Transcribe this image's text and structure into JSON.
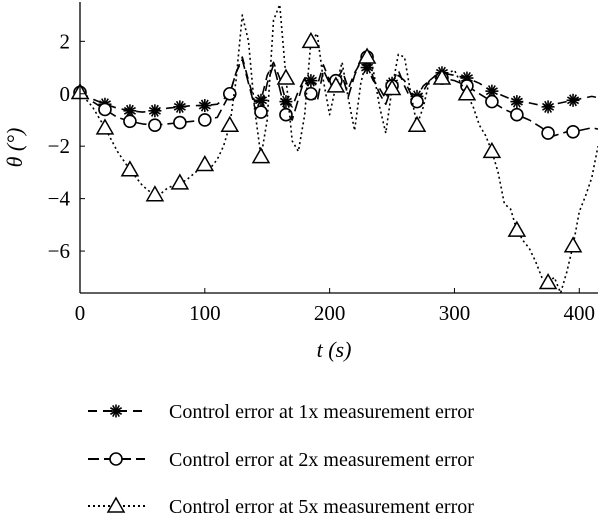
{
  "chart_data": {
    "type": "line",
    "title": "",
    "xlabel": "t (s)",
    "ylabel": "θ (°)",
    "xlim": [
      0,
      415
    ],
    "ylim": [
      -7.6,
      3.5
    ],
    "xticks": [
      0,
      100,
      200,
      300,
      400
    ],
    "yticks": [
      2,
      0,
      -2,
      -4,
      -6
    ],
    "grid": false,
    "legend_position": "bottom",
    "series": [
      {
        "name": "Control error at 1x measurement error",
        "marker": "asterisk",
        "line": "dashed",
        "markers_at": [
          0,
          20,
          40,
          60,
          80,
          100,
          120,
          145,
          165,
          185,
          205,
          230,
          250,
          270,
          290,
          310,
          330,
          350,
          375,
          395
        ],
        "x": [
          0,
          10,
          20,
          30,
          40,
          50,
          60,
          70,
          80,
          90,
          100,
          110,
          120,
          125,
          130,
          135,
          140,
          145,
          150,
          155,
          160,
          165,
          170,
          175,
          180,
          185,
          190,
          195,
          200,
          205,
          210,
          215,
          220,
          225,
          230,
          235,
          240,
          245,
          250,
          255,
          260,
          265,
          270,
          275,
          280,
          285,
          290,
          295,
          300,
          310,
          320,
          330,
          340,
          350,
          360,
          370,
          375,
          380,
          390,
          395,
          400,
          410,
          415
        ],
        "values": [
          0.05,
          -0.2,
          -0.4,
          -0.55,
          -0.65,
          -0.7,
          -0.65,
          -0.55,
          -0.5,
          -0.45,
          -0.45,
          -0.4,
          0.0,
          0.8,
          1.4,
          0.5,
          -0.3,
          -0.25,
          0.7,
          1.2,
          0.6,
          -0.3,
          -0.5,
          0.1,
          0.6,
          0.5,
          0.3,
          1.1,
          0.5,
          0.45,
          0.9,
          0.2,
          0.8,
          1.2,
          1.0,
          0.5,
          0.2,
          -0.2,
          0.4,
          0.9,
          0.3,
          -0.2,
          -0.1,
          0.3,
          0.5,
          0.7,
          0.8,
          0.75,
          0.7,
          0.6,
          0.4,
          0.1,
          -0.1,
          -0.3,
          -0.35,
          -0.45,
          -0.5,
          -0.4,
          -0.3,
          -0.25,
          -0.2,
          -0.1,
          -0.15
        ]
      },
      {
        "name": "Control error at 2x measurement error",
        "marker": "circle",
        "line": "dashed",
        "markers_at": [
          0,
          20,
          40,
          60,
          80,
          100,
          120,
          145,
          165,
          185,
          205,
          230,
          250,
          270,
          290,
          310,
          330,
          350,
          375,
          395
        ],
        "x": [
          0,
          10,
          20,
          30,
          40,
          50,
          60,
          70,
          80,
          90,
          100,
          110,
          120,
          125,
          130,
          135,
          140,
          145,
          150,
          155,
          160,
          165,
          170,
          175,
          180,
          185,
          190,
          195,
          200,
          205,
          210,
          215,
          220,
          225,
          230,
          235,
          240,
          245,
          250,
          255,
          260,
          265,
          270,
          275,
          280,
          285,
          290,
          295,
          300,
          310,
          320,
          330,
          340,
          350,
          360,
          370,
          375,
          380,
          390,
          395,
          400,
          410,
          415
        ],
        "values": [
          0.05,
          -0.3,
          -0.6,
          -0.9,
          -1.05,
          -1.15,
          -1.2,
          -1.15,
          -1.1,
          -1.05,
          -1.0,
          -0.9,
          0.0,
          0.8,
          1.3,
          0.4,
          -0.5,
          -0.7,
          0.4,
          1.1,
          0.2,
          -0.8,
          -1.0,
          -0.2,
          0.6,
          0.0,
          -0.3,
          0.9,
          0.4,
          0.5,
          0.7,
          -0.1,
          0.7,
          1.3,
          1.4,
          0.6,
          0.0,
          -0.4,
          0.3,
          0.7,
          0.5,
          0.0,
          -0.3,
          0.1,
          0.5,
          0.6,
          0.6,
          0.55,
          0.5,
          0.3,
          0.0,
          -0.3,
          -0.6,
          -0.8,
          -1.0,
          -1.3,
          -1.5,
          -1.6,
          -1.45,
          -1.45,
          -1.4,
          -1.3,
          -1.35
        ]
      },
      {
        "name": "Control error at 5x measurement error",
        "marker": "triangle",
        "line": "dotted",
        "markers_at": [
          0,
          20,
          40,
          60,
          80,
          100,
          120,
          145,
          165,
          185,
          205,
          230,
          250,
          270,
          290,
          310,
          330,
          350,
          375,
          395
        ],
        "x": [
          0,
          10,
          20,
          30,
          40,
          45,
          50,
          55,
          60,
          65,
          70,
          75,
          80,
          85,
          90,
          95,
          100,
          105,
          110,
          115,
          120,
          125,
          130,
          135,
          140,
          145,
          150,
          155,
          160,
          165,
          170,
          175,
          180,
          185,
          190,
          195,
          200,
          205,
          210,
          215,
          220,
          225,
          230,
          235,
          240,
          245,
          250,
          255,
          260,
          265,
          270,
          275,
          280,
          285,
          290,
          295,
          300,
          305,
          310,
          315,
          320,
          325,
          330,
          335,
          340,
          345,
          350,
          355,
          360,
          365,
          370,
          375,
          380,
          385,
          390,
          395,
          400,
          405,
          410,
          415
        ],
        "values": [
          0.05,
          -0.5,
          -1.3,
          -2.2,
          -2.9,
          -3.2,
          -3.5,
          -3.7,
          -3.85,
          -3.8,
          -3.6,
          -3.5,
          -3.4,
          -3.3,
          -3.1,
          -2.9,
          -2.7,
          -2.8,
          -2.5,
          -2.0,
          -1.2,
          0.5,
          3.0,
          2.0,
          -0.6,
          -2.4,
          -1.0,
          2.8,
          3.4,
          0.6,
          -1.8,
          -2.2,
          -0.8,
          2.0,
          2.3,
          0.5,
          -0.8,
          0.3,
          1.2,
          -0.2,
          -1.4,
          0.4,
          1.4,
          0.9,
          -0.5,
          -1.5,
          0.2,
          1.5,
          1.4,
          0.0,
          -1.2,
          -0.5,
          0.5,
          0.7,
          0.6,
          0.8,
          0.9,
          0.4,
          0.0,
          -0.5,
          -1.2,
          -1.6,
          -2.2,
          -3.0,
          -4.2,
          -4.4,
          -5.2,
          -5.6,
          -5.9,
          -6.4,
          -7.0,
          -7.2,
          -7.0,
          -7.6,
          -6.8,
          -5.8,
          -4.5,
          -3.9,
          -3.2,
          -2.0
        ]
      }
    ]
  }
}
